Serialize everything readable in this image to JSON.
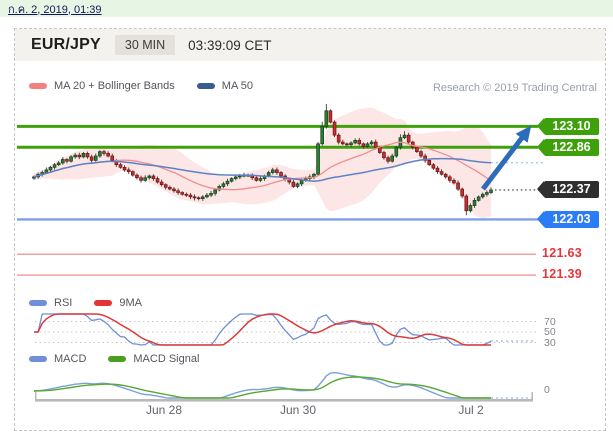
{
  "top_bar": {
    "date_text": "ก.ค. 2, 2019, 01:39",
    "bg_color": "#e7f6e4",
    "text_color": "#15155a"
  },
  "header": {
    "symbol": "EUR/JPY",
    "timeframe": "30 MIN",
    "time": "03:39:09 CET"
  },
  "attribution": "Research © 2019 Trading Central",
  "legends": {
    "price": [
      {
        "label": "MA 20 + Bollinger Bands",
        "color": "#f58080"
      },
      {
        "label": "MA 50",
        "color": "#3b5c8e"
      }
    ],
    "rsi": [
      {
        "label": "RSI",
        "color": "#6f8fd8"
      },
      {
        "label": "9MA",
        "color": "#e23535"
      }
    ],
    "macd": [
      {
        "label": "MACD",
        "color": "#6f8fd8"
      },
      {
        "label": "MACD Signal",
        "color": "#4aa01e"
      }
    ]
  },
  "levels": [
    {
      "label": "123.10",
      "price": 123.1,
      "kind": "resistance-tag",
      "color": "#3ea10c"
    },
    {
      "label": "122.86",
      "price": 122.86,
      "kind": "resistance-tag",
      "color": "#3ea10c"
    },
    {
      "label": "122.37",
      "price": 122.37,
      "kind": "last-price-tag",
      "color": "#2f2f2f"
    },
    {
      "label": "122.03",
      "price": 122.03,
      "kind": "support-tag",
      "color": "#2a7cf7",
      "line_color": "#7f9fee"
    },
    {
      "label": "121.63",
      "price": 121.63,
      "kind": "support-label",
      "color": "#e8333a",
      "line_color": "#f2a0a0"
    },
    {
      "label": "121.39",
      "price": 121.39,
      "kind": "support-label",
      "color": "#e8333a",
      "line_color": "#f2a0a0"
    }
  ],
  "rsi_axis": [
    {
      "label": "70",
      "value": 70
    },
    {
      "label": "50",
      "value": 50
    },
    {
      "label": "30",
      "value": 30
    }
  ],
  "macd_axis": [
    {
      "label": "0",
      "value": 0
    }
  ],
  "x_ticks": [
    {
      "label": "Jun 28",
      "pos": 0.259
    },
    {
      "label": "Jun 30",
      "pos": 0.528
    },
    {
      "label": "Jul 2",
      "pos": 0.875
    }
  ],
  "chart_data": {
    "type": "candlestick",
    "symbol": "EUR/JPY",
    "interval": "30 MIN",
    "title": "EUR/JPY 30 MIN candlestick chart with MA 20 + Bollinger Bands, MA 50, RSI (9MA) and MACD (Signal) panels",
    "ylim": [
      121.28,
      123.45
    ],
    "x_axis_labels": [
      "Jun 28",
      "Jun 30",
      "Jul 2"
    ],
    "open_rule": "previous_close",
    "closes": [
      122.52,
      122.55,
      122.57,
      122.6,
      122.63,
      122.66,
      122.68,
      122.72,
      122.7,
      122.75,
      122.77,
      122.75,
      122.79,
      122.75,
      122.71,
      122.76,
      122.81,
      122.79,
      122.76,
      122.71,
      122.66,
      122.63,
      122.6,
      122.58,
      122.54,
      122.51,
      122.48,
      122.51,
      122.53,
      122.5,
      122.46,
      122.43,
      122.4,
      122.38,
      122.36,
      122.34,
      122.32,
      122.31,
      122.29,
      122.28,
      122.27,
      122.29,
      122.31,
      122.33,
      122.37,
      122.41,
      122.44,
      122.47,
      122.5,
      122.52,
      122.53,
      122.54,
      122.54,
      122.51,
      122.48,
      122.5,
      122.53,
      122.57,
      122.6,
      122.57,
      122.53,
      122.49,
      122.46,
      122.41,
      122.44,
      122.48,
      122.5,
      122.52,
      122.55,
      122.9,
      123.1,
      123.28,
      123.15,
      123.0,
      122.92,
      122.9,
      122.89,
      122.91,
      122.94,
      122.9,
      122.87,
      122.9,
      122.92,
      122.86,
      122.8,
      122.74,
      122.7,
      122.76,
      122.86,
      122.97,
      123.0,
      122.92,
      122.86,
      122.81,
      122.76,
      122.71,
      122.66,
      122.62,
      122.58,
      122.55,
      122.52,
      122.48,
      122.45,
      122.38,
      122.3,
      122.13,
      122.19,
      122.25,
      122.29,
      122.32,
      122.34,
      122.37
    ],
    "overlays": [
      "MA 20 + Bollinger Bands",
      "MA 50"
    ],
    "sub_panels": [
      {
        "name": "RSI",
        "lines": [
          "RSI",
          "9MA"
        ],
        "gridlines": [
          70,
          50,
          30
        ]
      },
      {
        "name": "MACD",
        "lines": [
          "MACD",
          "MACD Signal"
        ],
        "gridlines": [
          0
        ]
      }
    ],
    "levels": {
      "resistance": [
        123.1,
        122.86
      ],
      "last": 122.37,
      "support": [
        122.03,
        121.63,
        121.39
      ]
    },
    "annotation_arrow": {
      "direction": "up",
      "from_price": 122.38,
      "to_price": 123.0,
      "color": "#2c6cb8"
    },
    "colors": {
      "candle_up": "#2e7d32",
      "candle_down": "#c62f2f",
      "bollinger_fill": "rgba(240,128,128,0.20)",
      "ma20": "#ef8f8f",
      "ma50": "#5b82c6",
      "resistance_line": "#3ea10c",
      "support_line_blue": "#7f9fee",
      "support_line_red": "#f2a0a0",
      "rsi": "#6f8fd8",
      "rsi_9ma": "#d93b3b",
      "macd": "#7da0dc",
      "macd_signal": "#57a82e",
      "axis_bar": "#b9b9b9"
    }
  }
}
